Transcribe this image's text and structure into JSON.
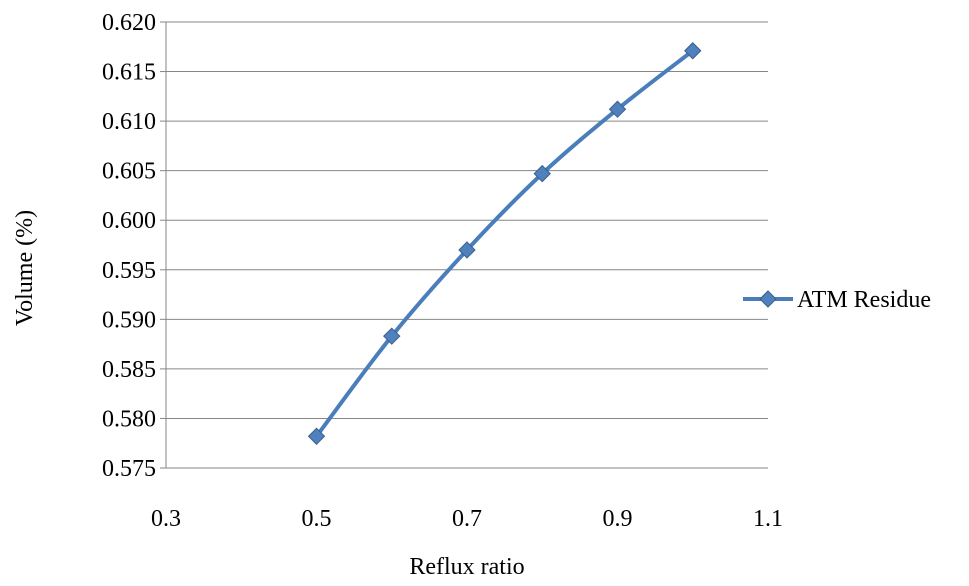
{
  "chart_data": {
    "type": "line",
    "title": "",
    "xlabel": "Reflux ratio",
    "ylabel": "Volume (%)",
    "xlim": [
      0.3,
      1.1
    ],
    "ylim": [
      0.575,
      0.62
    ],
    "x_ticks": [
      "0.3",
      "0.5",
      "0.7",
      "0.9",
      "1.1"
    ],
    "y_ticks": [
      "0.575",
      "0.580",
      "0.585",
      "0.590",
      "0.595",
      "0.600",
      "0.605",
      "0.610",
      "0.615",
      "0.620"
    ],
    "grid": "horizontal",
    "legend_position": "right",
    "series": [
      {
        "name": "ATM Residue",
        "color": "#4a7ebb",
        "marker": "diamond",
        "smooth": true,
        "x": [
          0.5,
          0.6,
          0.7,
          0.8,
          0.9,
          1.0
        ],
        "y": [
          0.5782,
          0.5883,
          0.597,
          0.6047,
          0.6112,
          0.6171
        ]
      }
    ]
  }
}
